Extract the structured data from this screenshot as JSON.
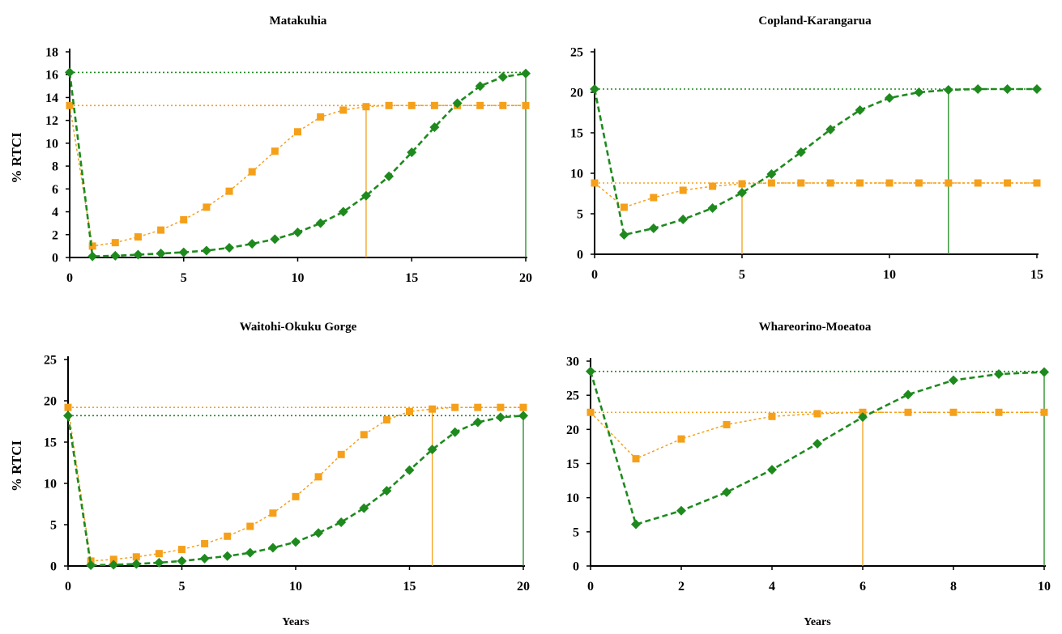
{
  "colors": {
    "green": "#1e8a1e",
    "orange": "#f5a01a"
  },
  "chart_data": [
    {
      "type": "line",
      "title": "Matakuhia",
      "ylabel": "% RTCI",
      "xlabel": "",
      "xlim": [
        0,
        20
      ],
      "ylim": [
        0,
        18
      ],
      "xticks": [
        0,
        5,
        10,
        15,
        20
      ],
      "yticks": [
        0,
        2,
        4,
        6,
        8,
        10,
        12,
        14,
        16,
        18
      ],
      "series": [
        {
          "color": "#f5a01a",
          "marker": "square",
          "x": [
            0,
            1,
            2,
            3,
            4,
            5,
            6,
            7,
            8,
            9,
            10,
            11,
            12,
            13,
            14,
            15,
            16,
            17,
            18,
            19,
            20
          ],
          "y": [
            13.3,
            1.0,
            1.3,
            1.8,
            2.4,
            3.3,
            4.4,
            5.8,
            7.5,
            9.3,
            11.0,
            12.3,
            12.9,
            13.2,
            13.3,
            13.3,
            13.3,
            13.3,
            13.3,
            13.3,
            13.3
          ]
        },
        {
          "color": "#1e8a1e",
          "marker": "diamond",
          "x": [
            0,
            1,
            2,
            3,
            4,
            5,
            6,
            7,
            8,
            9,
            10,
            11,
            12,
            13,
            14,
            15,
            16,
            17,
            18,
            19,
            20
          ],
          "y": [
            16.2,
            0.1,
            0.15,
            0.25,
            0.35,
            0.45,
            0.6,
            0.85,
            1.2,
            1.6,
            2.2,
            3.0,
            4.0,
            5.4,
            7.1,
            9.2,
            11.4,
            13.5,
            15.0,
            15.8,
            16.1
          ]
        }
      ],
      "reference_lines": [
        {
          "color": "#1e8a1e",
          "y": 16.2,
          "x": 20
        },
        {
          "color": "#f5a01a",
          "y": 13.3,
          "x": 13
        }
      ]
    },
    {
      "type": "line",
      "title": "Copland-Karangarua",
      "ylabel": "",
      "xlabel": "",
      "xlim": [
        0,
        15
      ],
      "ylim": [
        0,
        25
      ],
      "xticks": [
        0,
        5,
        10,
        15
      ],
      "yticks": [
        0,
        5,
        10,
        15,
        20,
        25
      ],
      "series": [
        {
          "color": "#f5a01a",
          "marker": "square",
          "x": [
            0,
            1,
            2,
            3,
            4,
            5,
            6,
            7,
            8,
            9,
            10,
            11,
            12,
            13,
            14,
            15
          ],
          "y": [
            8.8,
            5.8,
            7.0,
            7.9,
            8.4,
            8.7,
            8.8,
            8.8,
            8.8,
            8.8,
            8.8,
            8.8,
            8.8,
            8.8,
            8.8,
            8.8
          ]
        },
        {
          "color": "#1e8a1e",
          "marker": "diamond",
          "x": [
            0,
            1,
            2,
            3,
            4,
            5,
            6,
            7,
            8,
            9,
            10,
            11,
            12,
            13,
            14,
            15
          ],
          "y": [
            20.4,
            2.4,
            3.2,
            4.3,
            5.7,
            7.6,
            9.9,
            12.6,
            15.4,
            17.8,
            19.3,
            20.0,
            20.3,
            20.4,
            20.4,
            20.4
          ]
        }
      ],
      "reference_lines": [
        {
          "color": "#1e8a1e",
          "y": 20.4,
          "x": 12
        },
        {
          "color": "#f5a01a",
          "y": 8.8,
          "x": 5
        }
      ]
    },
    {
      "type": "line",
      "title": "Waitohi-Okuku Gorge",
      "ylabel": "% RTCI",
      "xlabel": "Years",
      "xlim": [
        0,
        20
      ],
      "ylim": [
        0,
        25
      ],
      "xticks": [
        0,
        5,
        10,
        15,
        20
      ],
      "yticks": [
        0,
        5,
        10,
        15,
        20,
        25
      ],
      "series": [
        {
          "color": "#f5a01a",
          "marker": "square",
          "x": [
            0,
            1,
            2,
            3,
            4,
            5,
            6,
            7,
            8,
            9,
            10,
            11,
            12,
            13,
            14,
            15,
            16,
            17,
            18,
            19,
            20
          ],
          "y": [
            19.2,
            0.6,
            0.8,
            1.1,
            1.5,
            2.0,
            2.7,
            3.6,
            4.8,
            6.4,
            8.4,
            10.8,
            13.5,
            15.9,
            17.7,
            18.7,
            19.0,
            19.2,
            19.2,
            19.2,
            19.2
          ]
        },
        {
          "color": "#1e8a1e",
          "marker": "diamond",
          "x": [
            0,
            1,
            2,
            3,
            4,
            5,
            6,
            7,
            8,
            9,
            10,
            11,
            12,
            13,
            14,
            15,
            16,
            17,
            18,
            19,
            20
          ],
          "y": [
            18.2,
            0.1,
            0.15,
            0.25,
            0.4,
            0.6,
            0.9,
            1.2,
            1.6,
            2.2,
            2.9,
            4.0,
            5.3,
            7.0,
            9.1,
            11.6,
            14.1,
            16.2,
            17.4,
            18.0,
            18.2
          ]
        }
      ],
      "reference_lines": [
        {
          "color": "#f5a01a",
          "y": 19.2,
          "x": 16
        },
        {
          "color": "#1e8a1e",
          "y": 18.2,
          "x": 20
        }
      ]
    },
    {
      "type": "line",
      "title": "Whareorino-Moeatoa",
      "ylabel": "",
      "xlabel": "Years",
      "xlim": [
        0,
        10
      ],
      "ylim": [
        0,
        30
      ],
      "xticks": [
        0,
        2,
        4,
        6,
        8,
        10
      ],
      "yticks": [
        0,
        5,
        10,
        15,
        20,
        25,
        30
      ],
      "series": [
        {
          "color": "#f5a01a",
          "marker": "square",
          "x": [
            0,
            1,
            2,
            3,
            4,
            5,
            6,
            7,
            8,
            9,
            10
          ],
          "y": [
            22.5,
            15.7,
            18.6,
            20.7,
            21.9,
            22.3,
            22.5,
            22.5,
            22.5,
            22.5,
            22.5
          ]
        },
        {
          "color": "#1e8a1e",
          "marker": "diamond",
          "x": [
            0,
            1,
            2,
            3,
            4,
            5,
            6,
            7,
            8,
            9,
            10
          ],
          "y": [
            28.5,
            6.1,
            8.1,
            10.8,
            14.1,
            17.9,
            21.8,
            25.1,
            27.2,
            28.1,
            28.4
          ]
        }
      ],
      "reference_lines": [
        {
          "color": "#1e8a1e",
          "y": 28.5,
          "x": 10
        },
        {
          "color": "#f5a01a",
          "y": 22.5,
          "x": 6
        }
      ]
    }
  ]
}
